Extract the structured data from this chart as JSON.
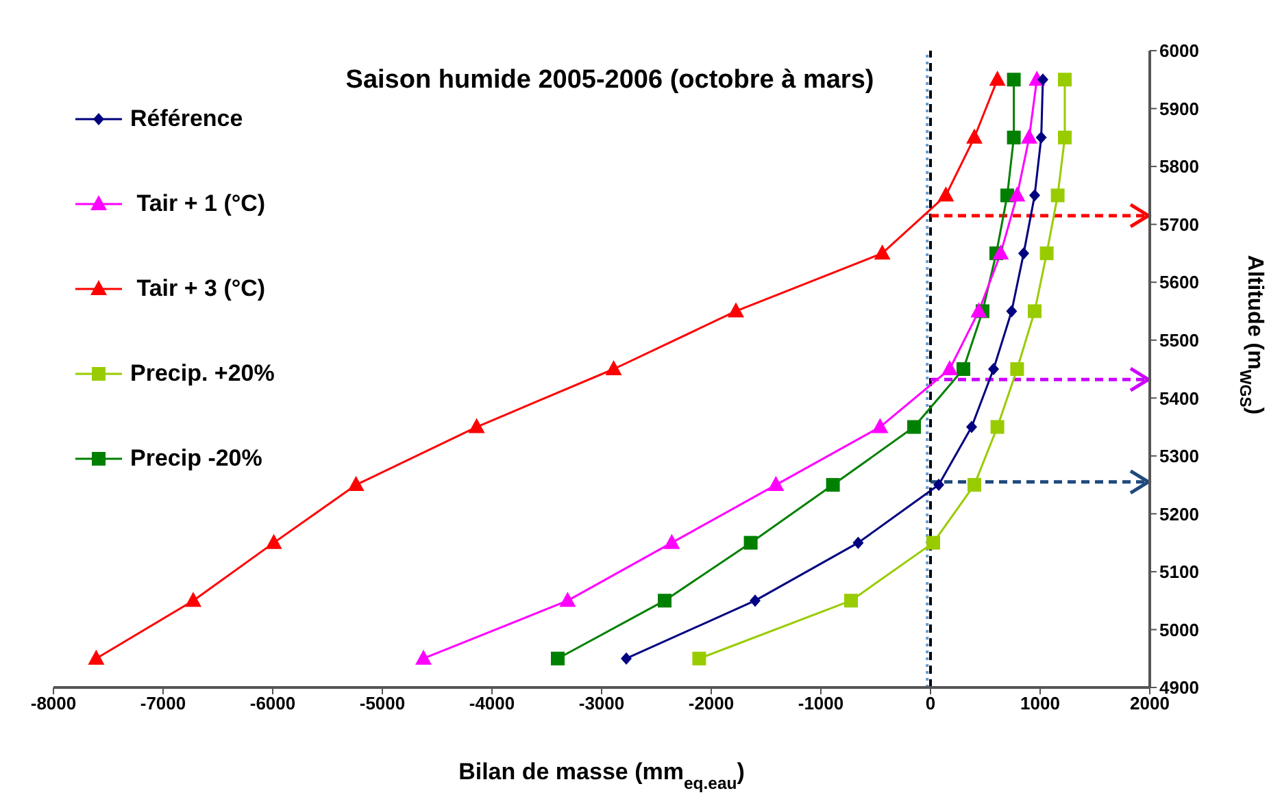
{
  "chart_data": {
    "type": "line",
    "title": "Saison humide 2005-2006 (octobre à mars)",
    "xlabel": "Bilan de masse (mm$_{eq.eau}$)",
    "ylabel": "Altitude (m$_{WGS}$)",
    "xlim": [
      -8000,
      2000
    ],
    "xticks": [
      -8000,
      -7000,
      -6000,
      -5000,
      -4000,
      -3000,
      -2000,
      -1000,
      0,
      1000,
      2000
    ],
    "ylim": [
      4900,
      6000
    ],
    "yticks": [
      4900,
      5000,
      5100,
      5200,
      5300,
      5400,
      5500,
      5600,
      5700,
      5800,
      5900,
      6000
    ],
    "legend": "top left",
    "series": [
      {
        "name": "Référence",
        "color": "#000080",
        "marker": "diamond",
        "x": [
          -2775,
          -1600,
          -660,
          75,
          375,
          575,
          740,
          850,
          950,
          1010,
          1025
        ],
        "values": [
          4950,
          5050,
          5150,
          5250,
          5350,
          5450,
          5550,
          5650,
          5750,
          5850,
          5950
        ]
      },
      {
        "name": " Tair + 1 (°C)",
        "color": "#ff00ff",
        "marker": "triangle",
        "x": [
          -4625,
          -3310,
          -2360,
          -1410,
          -460,
          175,
          440,
          640,
          790,
          900,
          970
        ],
        "values": [
          4950,
          5050,
          5150,
          5250,
          5350,
          5450,
          5550,
          5650,
          5750,
          5850,
          5950
        ]
      },
      {
        "name": " Tair + 3 (°C)",
        "color": "#ff0000",
        "marker": "triangle",
        "x": [
          -7610,
          -6725,
          -5990,
          -5240,
          -4140,
          -2890,
          -1775,
          -440,
          140,
          400,
          610
        ],
        "values": [
          4950,
          5050,
          5150,
          5250,
          5350,
          5450,
          5550,
          5650,
          5750,
          5850,
          5950
        ]
      },
      {
        "name": "Precip. +20%",
        "color": "#99cc00",
        "marker": "square",
        "x": [
          -2110,
          -725,
          25,
          400,
          610,
          790,
          950,
          1060,
          1160,
          1225,
          1225
        ],
        "values": [
          4950,
          5050,
          5150,
          5250,
          5350,
          5450,
          5550,
          5650,
          5750,
          5850,
          5950
        ]
      },
      {
        "name": "Precip -20%",
        "color": "#008000",
        "marker": "square",
        "x": [
          -3400,
          -2425,
          -1640,
          -890,
          -150,
          300,
          475,
          600,
          700,
          760,
          760
        ],
        "values": [
          4950,
          5050,
          5150,
          5250,
          5350,
          5450,
          5550,
          5650,
          5750,
          5850,
          5950
        ]
      }
    ],
    "ref_lines": [
      {
        "axis": "x",
        "value": 0,
        "color": "#000000",
        "line_style": "dashed"
      },
      {
        "axis": "x",
        "value": -30,
        "color": "#6699cc",
        "line_style": "dotted"
      },
      {
        "axis": "y",
        "value": 5715,
        "color": "#ff0000",
        "line_style": "dashed"
      },
      {
        "axis": "y",
        "value": 5432,
        "color": "#cc00ff",
        "line_style": "dashed"
      },
      {
        "axis": "y",
        "value": 5255,
        "color": "#1f497d",
        "line_style": "dashed"
      }
    ]
  }
}
